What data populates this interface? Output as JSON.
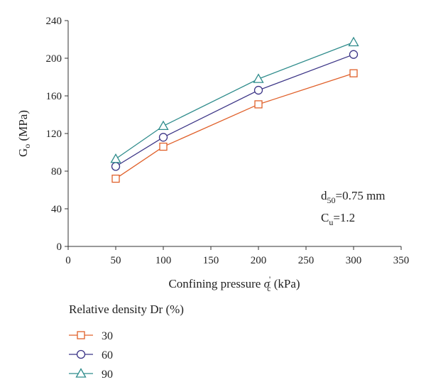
{
  "chart_data": {
    "type": "line",
    "title": "",
    "xlabel": {
      "main": "Confining pressure ",
      "symbol": "σ",
      "symbol_sub": "c",
      "symbol_sup": "'",
      "unit": " (kPa)"
    },
    "ylabel": {
      "main": "G",
      "sub": "o",
      "unit": " (MPa)"
    },
    "xlim": [
      0,
      350
    ],
    "ylim": [
      0,
      240
    ],
    "xticks": [
      0,
      50,
      100,
      150,
      200,
      250,
      300,
      350
    ],
    "yticks": [
      0,
      40,
      80,
      120,
      160,
      200,
      240
    ],
    "grid": false,
    "legend": {
      "title": "Relative density Dr (%)",
      "placement": "bottom-left-outside"
    },
    "x": [
      50,
      100,
      200,
      300
    ],
    "series": [
      {
        "name": "30",
        "marker": "square",
        "color": "#e0602a",
        "values": [
          72,
          106,
          151,
          184
        ]
      },
      {
        "name": "60",
        "marker": "circle",
        "color": "#3b3486",
        "values": [
          85,
          116,
          166,
          204
        ]
      },
      {
        "name": "90",
        "marker": "triangle",
        "color": "#2f8c8c",
        "values": [
          93,
          128,
          178,
          217
        ]
      }
    ],
    "annotations": [
      {
        "text": "d",
        "sub": "50",
        "rest": "=0.75 mm"
      },
      {
        "text": "C",
        "sub": "u",
        "rest": "=1.2"
      }
    ]
  }
}
